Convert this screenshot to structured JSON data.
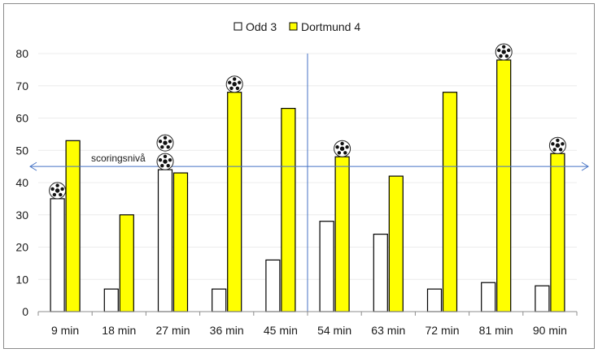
{
  "chart_data": {
    "type": "bar",
    "categories": [
      "9 min",
      "18 min",
      "27 min",
      "36 min",
      "45 min",
      "54 min",
      "63 min",
      "72 min",
      "81 min",
      "90 min"
    ],
    "series": [
      {
        "name": "Odd 3",
        "color": "#ffffff",
        "values": [
          35,
          7,
          44,
          7,
          16,
          28,
          24,
          7,
          9,
          8
        ]
      },
      {
        "name": "Dortmund 4",
        "color": "#ffff00",
        "values": [
          53,
          30,
          43,
          68,
          63,
          48,
          42,
          68,
          78,
          49
        ]
      }
    ],
    "ylim": [
      0,
      80
    ],
    "yticks": [
      0,
      10,
      20,
      30,
      40,
      50,
      60,
      70,
      80
    ],
    "grid": true,
    "legend_position": "top-center",
    "reference_line": {
      "label": "scoringsnivå",
      "value": 45
    },
    "halftime_divider_after_category": "45 min",
    "goals": [
      {
        "category": "9 min",
        "series": "Odd 3",
        "count": 1
      },
      {
        "category": "27 min",
        "series": "Odd 3",
        "count": 2
      },
      {
        "category": "36 min",
        "series": "Dortmund 4",
        "count": 1
      },
      {
        "category": "54 min",
        "series": "Dortmund 4",
        "count": 1
      },
      {
        "category": "81 min",
        "series": "Dortmund 4",
        "count": 1
      },
      {
        "category": "90 min",
        "series": "Dortmund 4",
        "count": 1
      }
    ],
    "goal_icon": "soccer-ball-icon"
  }
}
